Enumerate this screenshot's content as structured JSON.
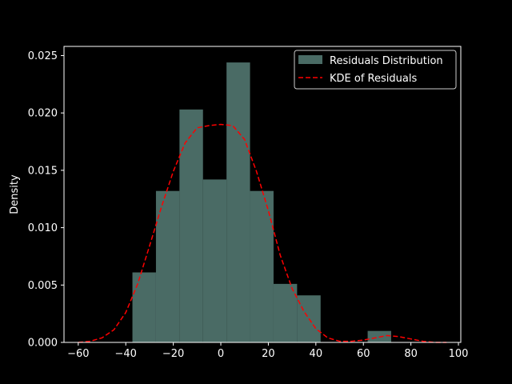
{
  "chart_data": {
    "type": "bar",
    "title": "",
    "xlabel": "",
    "ylabel": "Density",
    "xlim": [
      -66,
      101
    ],
    "ylim": [
      0,
      0.0258
    ],
    "xticks": [
      -60,
      -40,
      -20,
      0,
      20,
      40,
      60,
      80,
      100
    ],
    "xtick_labels": [
      "−60",
      "−40",
      "−20",
      "0",
      "20",
      "40",
      "60",
      "80",
      "100"
    ],
    "yticks": [
      0,
      0.005,
      0.01,
      0.015,
      0.02,
      0.025
    ],
    "ytick_labels": [
      "0.000",
      "0.005",
      "0.010",
      "0.015",
      "0.020",
      "0.025"
    ],
    "grid": false,
    "legend_position": "top-right",
    "series": [
      {
        "name": "Residuals Distribution",
        "kind": "histogram",
        "color": "#4a6b65",
        "bins": [
          {
            "x0": -37.2,
            "x1": -27.3,
            "value": 0.0061
          },
          {
            "x0": -27.3,
            "x1": -17.4,
            "value": 0.0132
          },
          {
            "x0": -17.4,
            "x1": -7.5,
            "value": 0.0203
          },
          {
            "x0": -7.5,
            "x1": 2.4,
            "value": 0.0142
          },
          {
            "x0": 2.4,
            "x1": 12.3,
            "value": 0.0244
          },
          {
            "x0": 12.3,
            "x1": 22.2,
            "value": 0.0132
          },
          {
            "x0": 22.2,
            "x1": 32.1,
            "value": 0.0051
          },
          {
            "x0": 32.1,
            "x1": 42.0,
            "value": 0.0041
          },
          {
            "x0": 42.0,
            "x1": 51.9,
            "value": 0
          },
          {
            "x0": 51.9,
            "x1": 61.8,
            "value": 0
          },
          {
            "x0": 61.8,
            "x1": 71.7,
            "value": 0.001
          }
        ]
      },
      {
        "name": "KDE of Residuals",
        "kind": "line",
        "style": "dashed",
        "color": "#ff0000",
        "x": [
          -60,
          -55,
          -50,
          -45,
          -40,
          -35,
          -30,
          -25,
          -20,
          -15,
          -10,
          -5,
          0,
          5,
          10,
          15,
          20,
          25,
          30,
          35,
          40,
          45,
          50,
          55,
          60,
          65,
          70,
          75,
          80,
          85,
          90,
          95
        ],
        "y": [
          0.0,
          0.0001,
          0.0004,
          0.0011,
          0.0026,
          0.0051,
          0.0084,
          0.0118,
          0.0149,
          0.0174,
          0.0187,
          0.0189,
          0.019,
          0.0189,
          0.0177,
          0.0149,
          0.0115,
          0.0076,
          0.0047,
          0.0027,
          0.0012,
          0.0004,
          0.0001,
          0.0001,
          0.0002,
          0.0004,
          0.0006,
          0.0005,
          0.0003,
          0.0001,
          0.0,
          0.0
        ]
      }
    ]
  }
}
